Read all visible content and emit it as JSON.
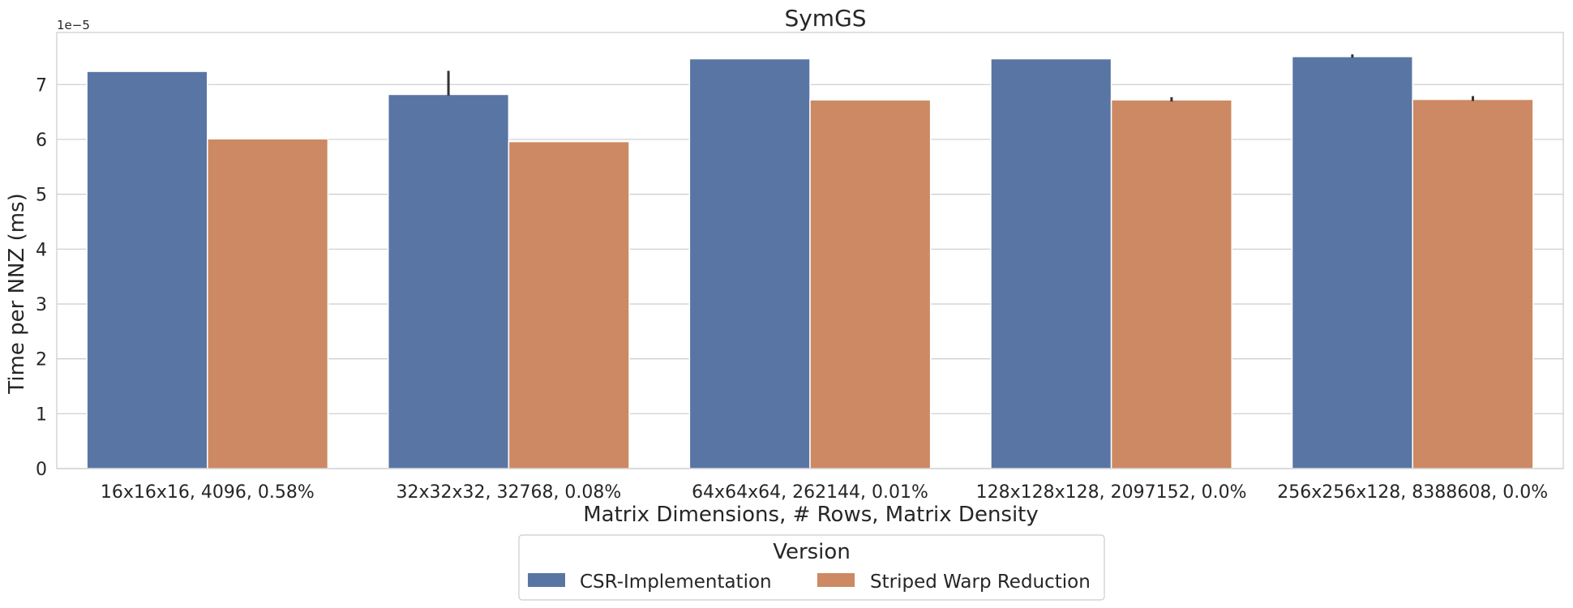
{
  "chart_data": {
    "type": "bar",
    "title": "SymGS",
    "xlabel": "Matrix Dimensions, # Rows, Matrix Density",
    "ylabel": "Time per NNZ (ms)",
    "y_offset_label": "1e−5",
    "y_scale": 1e-05,
    "ylim": [
      0,
      7.95
    ],
    "yticks": [
      0,
      1,
      2,
      3,
      4,
      5,
      6,
      7
    ],
    "grid": "horizontal",
    "categories": [
      "16x16x16, 4096, 0.58%",
      "32x32x32, 32768, 0.08%",
      "64x64x64, 262144, 0.01%",
      "128x128x128, 2097152, 0.0%",
      "256x256x128, 8388608, 0.0%"
    ],
    "series": [
      {
        "name": "CSR-Implementation",
        "color": "#5975a4",
        "values": [
          7.24,
          6.82,
          7.47,
          7.47,
          7.51
        ],
        "error_high": [
          null,
          7.25,
          null,
          null,
          7.55
        ],
        "error_low": [
          null,
          6.8,
          null,
          null,
          7.49
        ]
      },
      {
        "name": "Striped Warp Reduction",
        "color": "#cc8963",
        "values": [
          6.01,
          5.96,
          6.72,
          6.72,
          6.73
        ],
        "error_high": [
          null,
          null,
          null,
          6.77,
          6.79
        ],
        "error_low": [
          null,
          null,
          null,
          6.69,
          6.7
        ]
      }
    ],
    "legend": {
      "title": "Version",
      "placement": "bottom-center"
    }
  }
}
